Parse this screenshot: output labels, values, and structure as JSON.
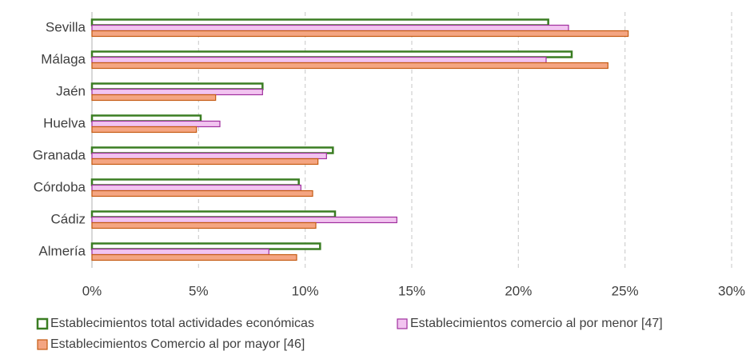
{
  "chart_data": {
    "type": "bar",
    "orientation": "horizontal",
    "categories": [
      "Sevilla",
      "Málaga",
      "Jaén",
      "Huelva",
      "Granada",
      "Córdoba",
      "Cádiz",
      "Almería"
    ],
    "series": [
      {
        "name": "Establecimientos total actividades económicas",
        "color": "#ffffff",
        "edge_color": "#3a7d22",
        "values": [
          21.4,
          22.5,
          8.0,
          5.1,
          11.3,
          9.7,
          11.4,
          10.7
        ]
      },
      {
        "name": "Establecimientos comercio al por menor [47]",
        "color": "#f2c4f0",
        "edge_color": "#a0309e",
        "values": [
          22.35,
          21.3,
          8.0,
          6.0,
          11.0,
          9.8,
          14.3,
          8.3
        ]
      },
      {
        "name": "Establecimientos Comercio al por mayor [46]",
        "color": "#f4a582",
        "edge_color": "#c55a11",
        "values": [
          25.15,
          24.2,
          5.8,
          4.9,
          10.6,
          10.35,
          10.5,
          9.6
        ]
      }
    ],
    "xlim": [
      0,
      30
    ],
    "xticks": [
      {
        "value": 0,
        "label": "0%"
      },
      {
        "value": 5,
        "label": "5%"
      },
      {
        "value": 10,
        "label": "10%"
      },
      {
        "value": 15,
        "label": "15%"
      },
      {
        "value": 20,
        "label": "20%"
      },
      {
        "value": 25,
        "label": "25%"
      },
      {
        "value": 30,
        "label": "30%"
      }
    ],
    "grid": true,
    "legend": "bottom"
  }
}
